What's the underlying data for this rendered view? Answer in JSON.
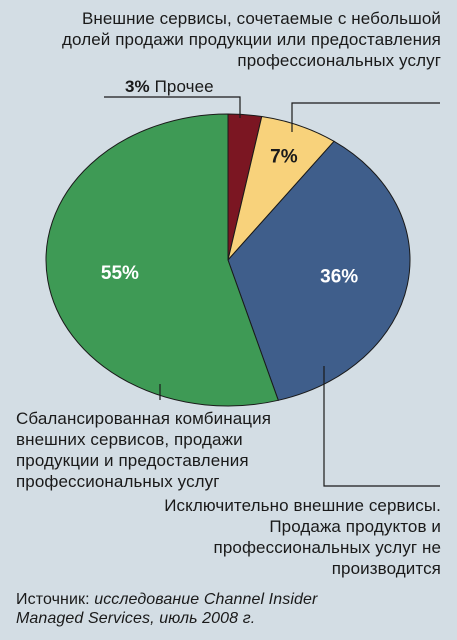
{
  "chart_data": {
    "type": "pie",
    "title": "",
    "slices": [
      {
        "label": "Прочее",
        "pct_label": "3%",
        "value": 3,
        "color": "#7b1622"
      },
      {
        "label": "Внешние сервисы, сочетаемые с небольшой долей продажи продукции или предоставления профессиональных услуг",
        "pct_label": "7%",
        "value": 7,
        "color": "#f8d27b"
      },
      {
        "label": "Исключительно внешние сервисы. Продажа продуктов и профессиональных услуг не производится",
        "pct_label": "36%",
        "value": 36,
        "color": "#3f5e8b"
      },
      {
        "label": "Сбалансированная комбинация внешних сервисов, продажи продукции и предоставления профессиональных услуг",
        "pct_label": "55%",
        "value": 55,
        "color": "#3e9a55"
      }
    ]
  },
  "labels": {
    "top_lines": [
      "Внешние сервисы, сочетаемые с небольшой",
      "долей продажи продукции или предоставления",
      "профессиональных услуг"
    ],
    "other": "Прочее",
    "balanced_lines": [
      "Сбалансированная комбинация",
      "внешних сервисов, продажи",
      "продукции и предоставления",
      "профессиональных услуг"
    ],
    "external_lines": [
      "Исключительно внешние сервисы.",
      "Продажа продуктов и",
      "профессиональных услуг не",
      "производится"
    ]
  },
  "source": {
    "prefix": "Источник: ",
    "text": "исследование Channel Insider",
    "text2": "Managed Services, июль 2008 г."
  }
}
